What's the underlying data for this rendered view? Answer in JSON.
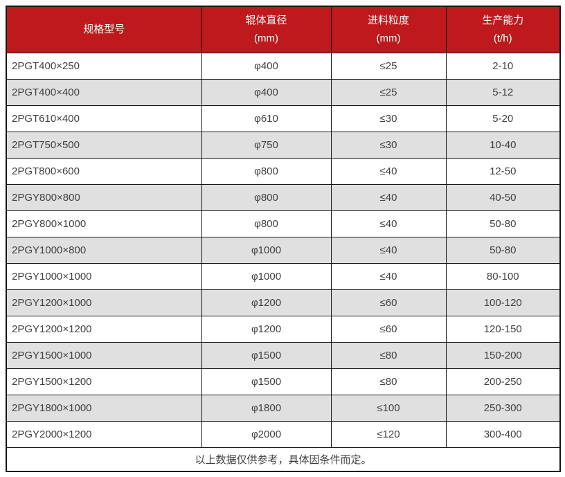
{
  "table": {
    "columns": [
      {
        "label": "规格型号",
        "unit": ""
      },
      {
        "label": "辊体直径",
        "unit": "(mm)"
      },
      {
        "label": "进料粒度",
        "unit": "(mm)"
      },
      {
        "label": "生产能力",
        "unit": "(t/h)"
      }
    ],
    "rows": [
      [
        "2PGT400×250",
        "φ400",
        "≤25",
        "2-10"
      ],
      [
        "2PGT400×400",
        "φ400",
        "≤25",
        "5-12"
      ],
      [
        "2PGT610×400",
        "φ610",
        "≤30",
        "5-20"
      ],
      [
        "2PGT750×500",
        "φ750",
        "≤30",
        "10-40"
      ],
      [
        "2PGT800×600",
        "φ800",
        "≤40",
        "12-50"
      ],
      [
        "2PGY800×800",
        "φ800",
        "≤40",
        "40-50"
      ],
      [
        "2PGY800×1000",
        "φ800",
        "≤40",
        "50-80"
      ],
      [
        "2PGY1000×800",
        "φ1000",
        "≤40",
        "50-80"
      ],
      [
        "2PGY1000×1000",
        "φ1000",
        "≤40",
        "80-100"
      ],
      [
        "2PGY1200×1000",
        "φ1200",
        "≤60",
        "100-120"
      ],
      [
        "2PGY1200×1200",
        "φ1200",
        "≤60",
        "120-150"
      ],
      [
        "2PGY1500×1000",
        "φ1500",
        "≤80",
        "150-200"
      ],
      [
        "2PGY1500×1200",
        "φ1500",
        "≤80",
        "200-250"
      ],
      [
        "2PGY1800×1000",
        "φ1800",
        "≤100",
        "250-300"
      ],
      [
        "2PGY2000×1200",
        "φ2000",
        "≤120",
        "300-400"
      ]
    ],
    "footnote": "以上数据仅供参考，具体因条件而定。",
    "colors": {
      "header_bg": "#be1a1d",
      "header_text": "#ffffff",
      "row_bg": "#ffffff",
      "row_alt_bg": "#e0e0e0",
      "border": "#141414",
      "text": "#404040"
    }
  },
  "chart_data": {
    "type": "table",
    "title": "",
    "columns": [
      "规格型号",
      "辊体直径 (mm)",
      "进料粒度 (mm)",
      "生产能力 (t/h)"
    ],
    "rows": [
      [
        "2PGT400×250",
        "φ400",
        "≤25",
        "2-10"
      ],
      [
        "2PGT400×400",
        "φ400",
        "≤25",
        "5-12"
      ],
      [
        "2PGT610×400",
        "φ610",
        "≤30",
        "5-20"
      ],
      [
        "2PGT750×500",
        "φ750",
        "≤30",
        "10-40"
      ],
      [
        "2PGT800×600",
        "φ800",
        "≤40",
        "12-50"
      ],
      [
        "2PGY800×800",
        "φ800",
        "≤40",
        "40-50"
      ],
      [
        "2PGY800×1000",
        "φ800",
        "≤40",
        "50-80"
      ],
      [
        "2PGY1000×800",
        "φ1000",
        "≤40",
        "50-80"
      ],
      [
        "2PGY1000×1000",
        "φ1000",
        "≤40",
        "80-100"
      ],
      [
        "2PGY1200×1000",
        "φ1200",
        "≤60",
        "100-120"
      ],
      [
        "2PGY1200×1200",
        "φ1200",
        "≤60",
        "120-150"
      ],
      [
        "2PGY1500×1000",
        "φ1500",
        "≤80",
        "150-200"
      ],
      [
        "2PGY1500×1200",
        "φ1500",
        "≤80",
        "200-250"
      ],
      [
        "2PGY1800×1000",
        "φ1800",
        "≤100",
        "250-300"
      ],
      [
        "2PGY2000×1200",
        "φ2000",
        "≤120",
        "300-400"
      ]
    ],
    "footnote": "以上数据仅供参考，具体因条件而定。"
  }
}
